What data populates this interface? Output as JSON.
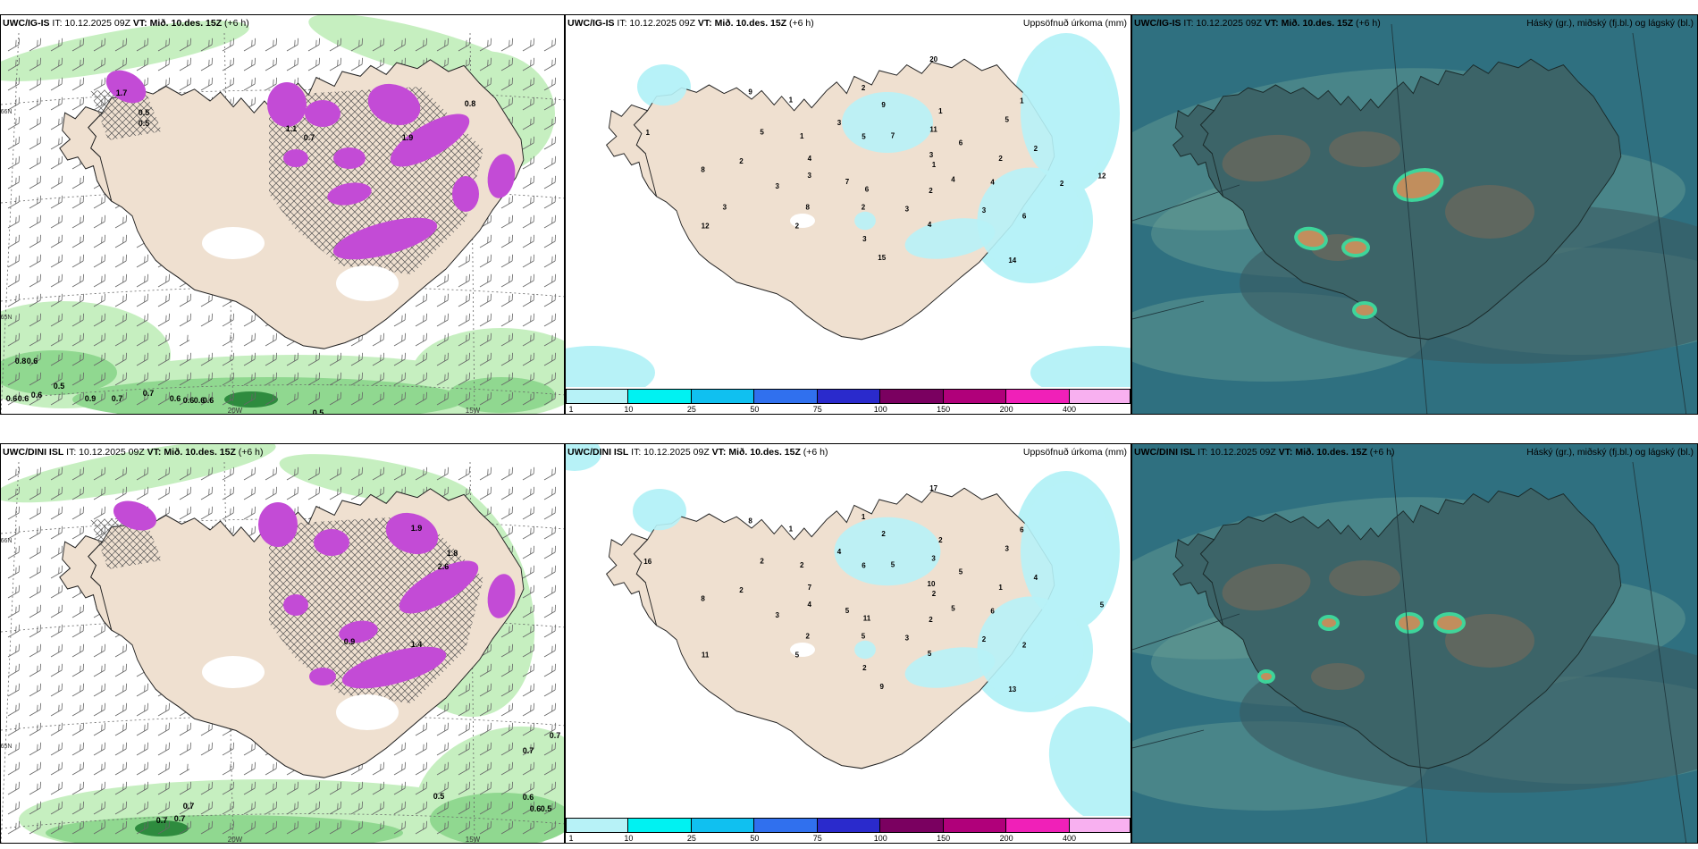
{
  "colors": {
    "land": "#efe0d0",
    "snow_green_light": "#c6efc0",
    "snow_green_mid": "#90d890",
    "snow_green_dark": "#2e8b3e",
    "magenta": "#c34bd6",
    "precip_light": "#b7f2f7",
    "sat_bg": "#2f7080",
    "sat_land": "#3c6468",
    "sat_haze": "#6aa095"
  },
  "rows": [
    {
      "id": "row-top",
      "panels": [
        {
          "model": "UWC/IG-IS",
          "it": "IT: 10.12.2025 09Z",
          "vt": "VT: Mið. 10.des. 15Z",
          "lead": "(+6 h)",
          "right": ""
        },
        {
          "model": "UWC/IG-IS",
          "it": "IT: 10.12.2025 09Z",
          "vt": "VT: Mið. 10.des. 15Z",
          "lead": "(+6 h)",
          "right": "Uppsöfnuð úrkoma (mm)"
        },
        {
          "model": "UWC/IG-IS",
          "it": "IT: 10.12.2025 09Z",
          "vt": "VT: Mið. 10.des. 15Z",
          "lead": "(+6 h)",
          "right": "Háský (gr.), miðský (fj.bl.) og lágský (bl.)"
        }
      ],
      "left_values": [
        "0.8",
        "0.6",
        "0.6",
        "0.6",
        "0.6",
        "0.5",
        "0.9",
        "0.7",
        "0.7",
        "0.6",
        "0.6",
        "0.6",
        "0.6",
        "0.5",
        "0.8",
        "0.5",
        "1.7",
        "1.1",
        "0.7",
        "1.9",
        "0.5"
      ],
      "precip_values": [
        "1",
        "7",
        "7",
        "2",
        "4",
        "6",
        "2",
        "3",
        "4",
        "3",
        "1",
        "4",
        "5",
        "2",
        "2",
        "2",
        "6",
        "8",
        "1",
        "15",
        "9",
        "12",
        "12",
        "20",
        "14",
        "1",
        "3",
        "6",
        "5",
        "4",
        "3",
        "11",
        "3",
        "1",
        "2",
        "8",
        "9",
        "3",
        "2",
        "5",
        "3",
        "1",
        "2",
        "3"
      ]
    },
    {
      "id": "row-bottom",
      "panels": [
        {
          "model": "UWC/DINI ISL",
          "it": "IT: 10.12.2025 09Z",
          "vt": "VT: Mið. 10.des. 15Z",
          "lead": "(+6 h)",
          "right": ""
        },
        {
          "model": "UWC/DINI ISL",
          "it": "IT: 10.12.2025 09Z",
          "vt": "VT: Mið. 10.des. 15Z",
          "lead": "(+6 h)",
          "right": "Uppsöfnuð úrkoma (mm)"
        },
        {
          "model": "UWC/DINI ISL",
          "it": "IT: 10.12.2025 09Z",
          "vt": "VT: Mið. 10.des. 15Z",
          "lead": "(+6 h)",
          "right": "Háský (gr.), miðský (fj.bl.) og lágský (bl.)"
        }
      ],
      "left_values": [
        "0.7",
        "0.7",
        "0.7",
        "0.5",
        "0.6",
        "0.6",
        "0.5",
        "0.7",
        "0.7",
        "1.9",
        "1.8",
        "2.6",
        "1.4",
        "0.9"
      ],
      "precip_values": [
        "2",
        "5",
        "5",
        "2",
        "7",
        "5",
        "5",
        "4",
        "6",
        "3",
        "2",
        "5",
        "2",
        "4",
        "5",
        "1",
        "2",
        "8",
        "6",
        "9",
        "8",
        "5",
        "11",
        "17",
        "13",
        "16",
        "10",
        "11",
        "6",
        "5",
        "4",
        "3",
        "3",
        "2",
        "1",
        "2",
        "2",
        "2",
        "2",
        "3",
        "2",
        "1"
      ]
    }
  ],
  "axes": {
    "w20": "20W",
    "w15": "15W",
    "n66": "66N",
    "n65": "65N"
  },
  "colorbar": {
    "ticks": [
      "1",
      "10",
      "25",
      "50",
      "75",
      "100",
      "150",
      "200",
      "400"
    ],
    "colors": [
      "#b7f2f7",
      "#00f2f2",
      "#10c0f0",
      "#3070ee",
      "#2a2acc",
      "#7a0060",
      "#b0007a",
      "#f020b8",
      "#f8b0f0"
    ]
  }
}
